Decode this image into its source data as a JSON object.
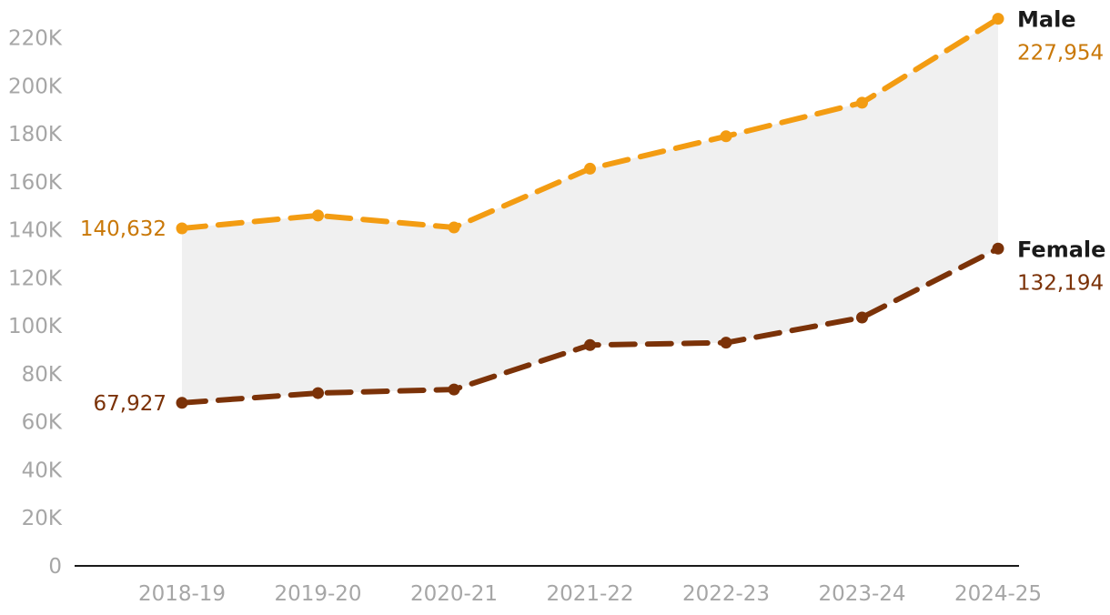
{
  "chart_data": {
    "type": "line",
    "title": "",
    "xlabel": "",
    "ylabel": "",
    "categories": [
      "2018-19",
      "2019-20",
      "2020-21",
      "2021-22",
      "2022-23",
      "2023-24",
      "2024-25"
    ],
    "ylim": [
      0,
      230000
    ],
    "yticks": [
      0,
      20000,
      40000,
      60000,
      80000,
      100000,
      120000,
      140000,
      160000,
      180000,
      200000,
      220000
    ],
    "ytick_labels": [
      "0",
      "20K",
      "40K",
      "60K",
      "80K",
      "100K",
      "120K",
      "140K",
      "160K",
      "180K",
      "200K",
      "220K"
    ],
    "grid": false,
    "legend": "none",
    "fill_between": true,
    "fill_color": "#f0f0f0",
    "series": [
      {
        "name": "Male",
        "color": "#f39c12",
        "label_color": "#c97808",
        "line_style": "dashed",
        "values": [
          140632,
          146000,
          141000,
          165500,
          179000,
          193000,
          227954
        ],
        "start_label": "140,632",
        "end_label": "227,954"
      },
      {
        "name": "Female",
        "color": "#7b3208",
        "label_color": "#7b3208",
        "line_style": "dashed",
        "values": [
          67927,
          72000,
          73500,
          92000,
          93000,
          103500,
          132194
        ],
        "start_label": "67,927",
        "end_label": "132,194"
      }
    ]
  }
}
